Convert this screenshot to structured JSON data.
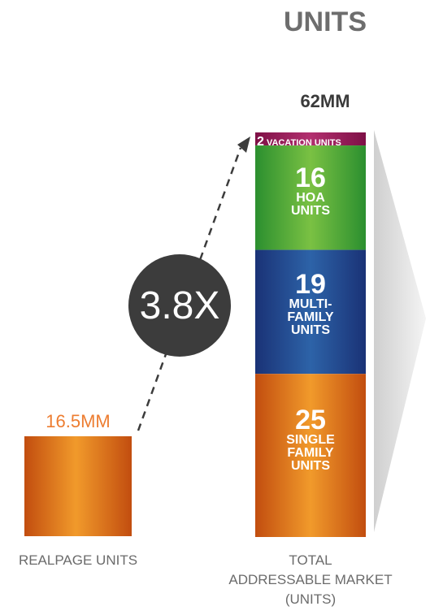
{
  "header": {
    "title": "UNITS"
  },
  "left_bar": {
    "value_label": "16.5MM",
    "caption": "REALPAGE UNITS"
  },
  "multiplier": "3.8X",
  "right_bar": {
    "total_label": "62MM",
    "caption_lines": [
      "TOTAL",
      "ADDRESSABLE MARKET",
      "(UNITS)"
    ],
    "segments": [
      {
        "key": "vacation",
        "value": "2",
        "lines": [
          "VACATION UNITS"
        ]
      },
      {
        "key": "hoa",
        "value": "16",
        "lines": [
          "HOA",
          "UNITS"
        ]
      },
      {
        "key": "multi",
        "value": "19",
        "lines": [
          "MULTI-",
          "FAMILY",
          "UNITS"
        ]
      },
      {
        "key": "single",
        "value": "25",
        "lines": [
          "SINGLE",
          "FAMILY",
          "UNITS"
        ]
      }
    ]
  },
  "colors": {
    "vacation": "#9e1c5d",
    "hoa": "#3aa23a",
    "multi": "#1e3f8e",
    "single": "#d9661a",
    "left_value": "#ed7d31",
    "circle": "#3c3c3c"
  },
  "chart_data": {
    "type": "bar",
    "title": "UNITS",
    "categories": [
      "REALPAGE UNITS",
      "TOTAL ADDRESSABLE MARKET (UNITS)"
    ],
    "values": [
      16.5,
      62
    ],
    "unit": "MM",
    "stacked_segments": [
      {
        "name": "VACATION UNITS",
        "value": 2
      },
      {
        "name": "HOA UNITS",
        "value": 16
      },
      {
        "name": "MULTI-FAMILY UNITS",
        "value": 19
      },
      {
        "name": "SINGLE FAMILY UNITS",
        "value": 25
      }
    ],
    "annotation": "3.8X"
  }
}
